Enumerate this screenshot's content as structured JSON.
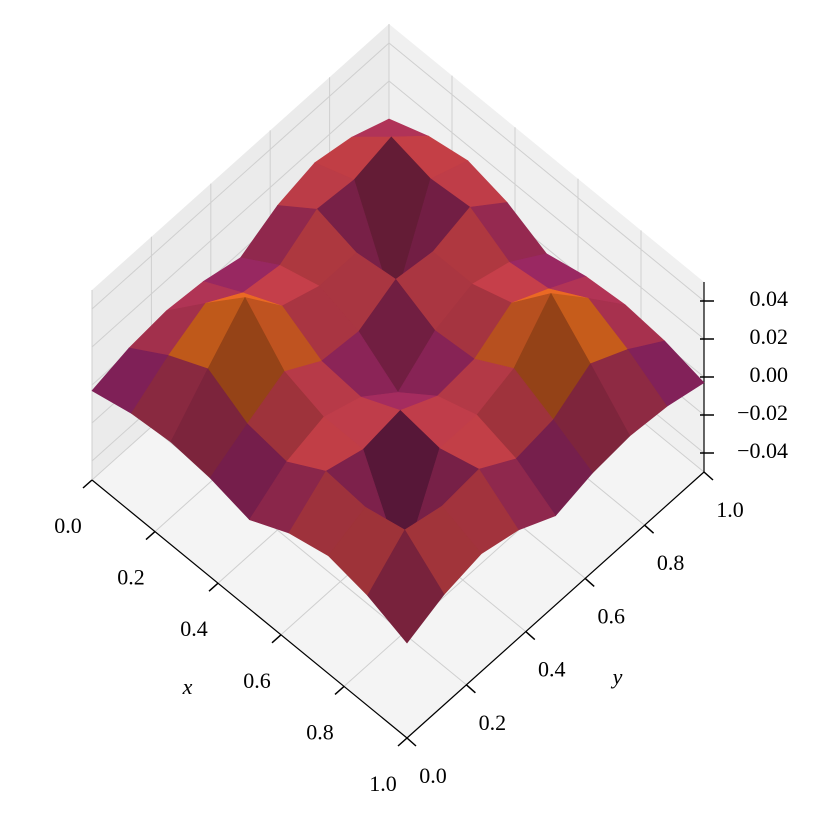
{
  "chart_data": {
    "type": "surface",
    "xlabel": "x",
    "ylabel": "y",
    "x": [
      0,
      0.125,
      0.25,
      0.375,
      0.5,
      0.625,
      0.75,
      0.875,
      1
    ],
    "y": [
      0,
      0.125,
      0.25,
      0.375,
      0.5,
      0.625,
      0.75,
      0.875,
      1
    ],
    "z": [
      [
        -0.003,
        0.002,
        0.004,
        0.002,
        -0.003,
        0.007,
        0.012,
        0.008,
        0.0
      ],
      [
        0.002,
        0.015,
        0.025,
        0.013,
        0.01,
        0.022,
        0.02,
        0.025,
        0.008
      ],
      [
        0.004,
        0.025,
        0.045,
        0.023,
        0.016,
        0.016,
        -0.03,
        0.02,
        0.012
      ],
      [
        0.002,
        0.013,
        0.023,
        0.011,
        0.009,
        0.019,
        0.016,
        0.022,
        0.007
      ],
      [
        -0.003,
        0.01,
        0.016,
        0.009,
        -0.006,
        0.009,
        0.016,
        0.01,
        -0.003
      ],
      [
        0.007,
        0.022,
        0.016,
        0.019,
        0.009,
        0.011,
        0.023,
        0.013,
        0.002
      ],
      [
        0.012,
        0.02,
        -0.03,
        0.016,
        0.016,
        0.023,
        0.045,
        0.025,
        0.004
      ],
      [
        0.008,
        0.025,
        0.02,
        0.022,
        0.01,
        0.013,
        0.025,
        0.015,
        0.002
      ],
      [
        0.0,
        0.008,
        0.012,
        0.007,
        -0.003,
        0.002,
        0.004,
        0.002,
        -0.003
      ]
    ],
    "xlim": [
      0,
      1
    ],
    "ylim": [
      0,
      1
    ],
    "zlim": [
      -0.05,
      0.05
    ],
    "xticks": [
      {
        "value": 0,
        "label": "0.0"
      },
      0.2,
      0.4,
      0.6,
      0.8,
      {
        "value": 1,
        "label": "1.0"
      }
    ],
    "yticks": [
      {
        "value": 0,
        "label": "0.0"
      },
      0.2,
      0.4,
      0.6,
      0.8,
      {
        "value": 1,
        "label": "1.0"
      }
    ],
    "zticks": [
      {
        "value": -0.04,
        "label": "−0.04"
      },
      {
        "value": -0.02,
        "label": "−0.02"
      },
      {
        "value": 0,
        "label": "0.00"
      },
      0.02,
      0.04
    ],
    "colormap": "inferno",
    "grid": true
  }
}
